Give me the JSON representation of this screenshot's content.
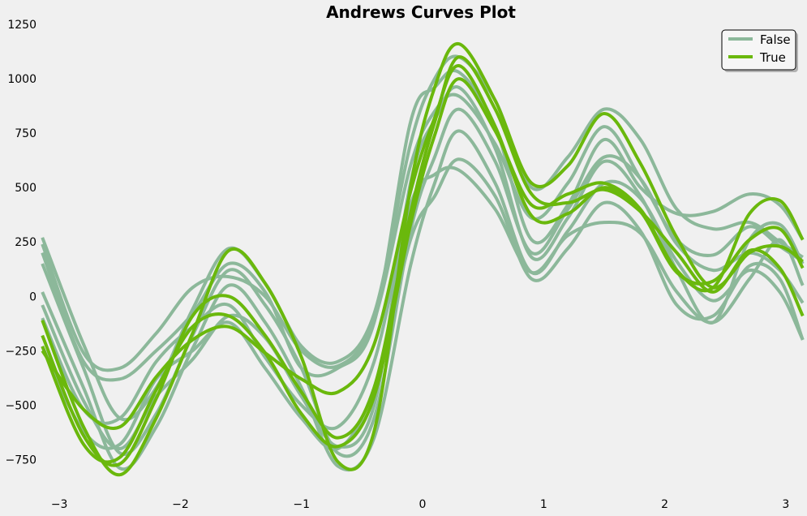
{
  "chart_data": {
    "type": "line",
    "title": "Andrews Curves Plot",
    "xlabel": "",
    "ylabel": "",
    "xlim": [
      -3.14159,
      3.14159
    ],
    "ylim": [
      -920,
      1250
    ],
    "x_ticks": [
      -3,
      -2,
      -1,
      0,
      1,
      2,
      3
    ],
    "x_tick_labels": [
      "−3",
      "−2",
      "−1",
      "0",
      "1",
      "2",
      "3"
    ],
    "y_ticks": [
      -750,
      -500,
      -250,
      0,
      250,
      500,
      750,
      1000,
      1250
    ],
    "y_tick_labels": [
      "−750",
      "−500",
      "−250",
      "0",
      "250",
      "500",
      "750",
      "1000",
      "1250"
    ],
    "grid": false,
    "legend_position": "top-right",
    "series": [
      {
        "name": "False",
        "color": "#8cb89a",
        "x": [
          -3.14,
          -2.8,
          -2.5,
          -2.2,
          -1.9,
          -1.6,
          -1.3,
          -1.0,
          -0.7,
          -0.4,
          -0.1,
          0.1,
          0.3,
          0.6,
          0.9,
          1.2,
          1.5,
          1.8,
          2.1,
          2.4,
          2.7,
          2.95,
          3.14
        ],
        "curves": [
          [
            270,
            -220,
            -560,
            -420,
            -60,
            220,
            60,
            -230,
            -300,
            -80,
            700,
            1000,
            1100,
            900,
            500,
            640,
            860,
            720,
            400,
            310,
            340,
            250,
            180
          ],
          [
            150,
            -330,
            -720,
            -540,
            -180,
            120,
            -40,
            -330,
            -720,
            -560,
            300,
            640,
            860,
            620,
            200,
            400,
            640,
            540,
            240,
            120,
            200,
            120,
            -30
          ],
          [
            20,
            -420,
            -790,
            -600,
            -240,
            50,
            -120,
            -420,
            -780,
            -650,
            140,
            520,
            760,
            520,
            110,
            300,
            520,
            450,
            160,
            -20,
            120,
            20,
            -200
          ],
          [
            -100,
            -520,
            -560,
            -300,
            -140,
            -40,
            -280,
            -500,
            -600,
            -300,
            420,
            560,
            580,
            400,
            110,
            280,
            340,
            290,
            20,
            -120,
            80,
            260,
            50
          ],
          [
            200,
            -300,
            -380,
            -250,
            -80,
            150,
            20,
            -330,
            -330,
            -120,
            800,
            960,
            1030,
            780,
            260,
            420,
            720,
            500,
            380,
            390,
            470,
            420,
            260
          ],
          [
            -40,
            -480,
            -700,
            -460,
            -290,
            -90,
            -190,
            -460,
            -690,
            -500,
            520,
            810,
            960,
            680,
            180,
            360,
            620,
            460,
            120,
            -120,
            260,
            330,
            150
          ],
          [
            240,
            -260,
            -330,
            -170,
            40,
            90,
            0,
            -250,
            -320,
            -110,
            600,
            850,
            920,
            700,
            360,
            520,
            780,
            540,
            260,
            190,
            320,
            230,
            160
          ],
          [
            -230,
            -620,
            -680,
            -380,
            -250,
            -120,
            -330,
            -560,
            -700,
            -420,
            260,
            460,
            630,
            460,
            80,
            220,
            430,
            300,
            -40,
            -90,
            140,
            80,
            -200
          ]
        ]
      },
      {
        "name": "True",
        "color": "#6ab80c",
        "x": [
          -3.14,
          -2.8,
          -2.5,
          -2.2,
          -1.9,
          -1.6,
          -1.3,
          -1.0,
          -0.7,
          -0.4,
          -0.1,
          0.1,
          0.3,
          0.6,
          0.9,
          1.2,
          1.5,
          1.8,
          2.1,
          2.4,
          2.7,
          2.95,
          3.14
        ],
        "curves": [
          [
            -110,
            -600,
            -820,
            -560,
            -170,
            210,
            60,
            -280,
            -760,
            -620,
            500,
            960,
            1160,
            900,
            520,
            600,
            840,
            610,
            270,
            40,
            200,
            230,
            160
          ],
          [
            -180,
            -640,
            -770,
            -470,
            -90,
            0,
            -180,
            -440,
            -650,
            -420,
            380,
            800,
            1100,
            860,
            470,
            430,
            490,
            390,
            200,
            20,
            210,
            130,
            -90
          ],
          [
            -250,
            -520,
            -600,
            -370,
            -200,
            -140,
            -260,
            -380,
            -440,
            -220,
            480,
            820,
            1060,
            780,
            370,
            380,
            500,
            390,
            110,
            70,
            260,
            310,
            130
          ],
          [
            -230,
            -680,
            -740,
            -430,
            -140,
            -90,
            -260,
            -540,
            -690,
            -460,
            330,
            740,
            1000,
            760,
            420,
            470,
            520,
            400,
            120,
            40,
            380,
            440,
            260
          ]
        ]
      }
    ]
  }
}
